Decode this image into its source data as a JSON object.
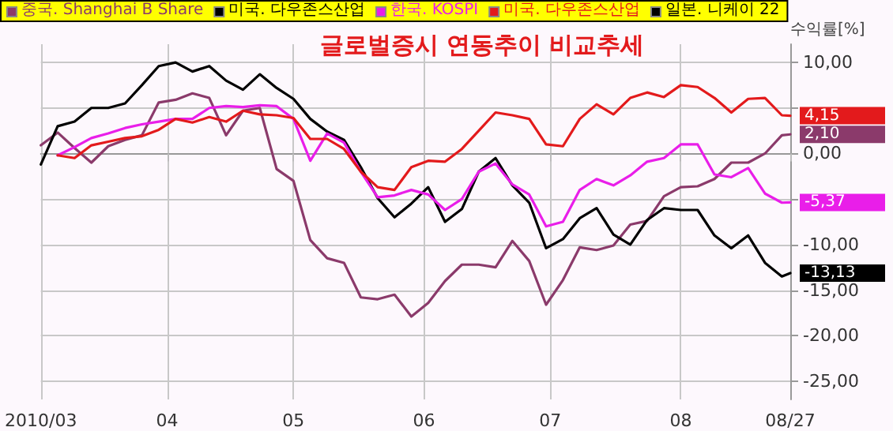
{
  "chart_data": {
    "type": "line",
    "title": "글로벌증시 연동추이 비교추세",
    "ylabel": "수익률[%]",
    "x": [
      "2010-03-02",
      "2010-03-06",
      "2010-03-10",
      "2010-03-14",
      "2010-03-18",
      "2010-03-22",
      "2010-03-26",
      "2010-03-30",
      "2010-04-03",
      "2010-04-07",
      "2010-04-11",
      "2010-04-15",
      "2010-04-19",
      "2010-04-23",
      "2010-04-27",
      "2010-05-01",
      "2010-05-05",
      "2010-05-09",
      "2010-05-13",
      "2010-05-17",
      "2010-05-21",
      "2010-05-25",
      "2010-05-29",
      "2010-06-02",
      "2010-06-06",
      "2010-06-10",
      "2010-06-14",
      "2010-06-18",
      "2010-06-22",
      "2010-06-26",
      "2010-06-30",
      "2010-07-04",
      "2010-07-08",
      "2010-07-12",
      "2010-07-16",
      "2010-07-20",
      "2010-07-24",
      "2010-07-28",
      "2010-08-01",
      "2010-08-05",
      "2010-08-09",
      "2010-08-13",
      "2010-08-17",
      "2010-08-21",
      "2010-08-25",
      "2010-08-27"
    ],
    "series": [
      {
        "name": "중국. Shanghai B Share",
        "color": "#8b3a6b",
        "values": [
          0.9,
          2.3,
          0.6,
          -1,
          0.8,
          1.5,
          2,
          5.6,
          5.9,
          6.6,
          6.1,
          2,
          4.7,
          5,
          -1.7,
          -3,
          -9.5,
          -11.5,
          -12,
          -15.8,
          -16,
          -15.5,
          -17.9,
          -16.4,
          -14,
          -12.2,
          -12.2,
          -12.5,
          -9.6,
          -11.8,
          -16.6,
          -13.9,
          -10.3,
          -10.6,
          -10.1,
          -7.8,
          -7.4,
          -4.7,
          -3.7,
          -3.6,
          -2.8,
          -1,
          -1,
          0,
          2,
          2.1
        ],
        "value_labels": [
          null,
          null,
          null,
          null,
          null,
          null,
          null,
          null,
          null,
          null,
          null,
          null,
          null,
          null,
          null,
          null,
          null,
          null,
          null,
          null,
          null,
          null,
          null,
          null,
          null,
          null,
          null,
          null,
          null,
          null,
          null,
          null,
          null,
          null,
          null,
          null,
          null,
          null,
          null,
          null,
          null,
          null,
          null,
          null,
          null,
          "2,10"
        ]
      },
      {
        "name": "미국. 다우존스산업",
        "color": "#000000",
        "values": [
          -1.2,
          3,
          3.5,
          5,
          5,
          5.5,
          7.5,
          9.6,
          10,
          9,
          9.6,
          8,
          7,
          8.7,
          7.2,
          6,
          3.8,
          2.4,
          1.5,
          -1.5,
          -4.9,
          -7,
          -5.5,
          -3.7,
          -7.5,
          -6.1,
          -2,
          -0.5,
          -3.5,
          -5.4,
          -10.4,
          -9.4,
          -7.1,
          -6,
          -8.9,
          -10,
          -7.3,
          -6,
          -6.2,
          -6.2,
          -9,
          -10.4,
          -9,
          -12,
          -13.5,
          -13.13
        ],
        "value_labels": [
          null,
          null,
          null,
          null,
          null,
          null,
          null,
          null,
          null,
          null,
          null,
          null,
          null,
          null,
          null,
          null,
          null,
          null,
          null,
          null,
          null,
          null,
          null,
          null,
          null,
          null,
          null,
          null,
          null,
          null,
          null,
          null,
          null,
          null,
          null,
          null,
          null,
          null,
          null,
          null,
          null,
          null,
          null,
          null,
          null,
          "-13,13"
        ]
      },
      {
        "name": "한국. KOSPI",
        "color": "#e91ee9",
        "values": [
          null,
          -0.2,
          0.7,
          1.7,
          2.2,
          2.8,
          3.2,
          3.5,
          3.8,
          3.8,
          5,
          5.2,
          5.1,
          5.3,
          5.2,
          3.8,
          -0.8,
          2.2,
          1.2,
          -2,
          -4.8,
          -4.6,
          -4,
          -4.5,
          -6.2,
          -5,
          -2,
          -1.1,
          -3.4,
          -4.5,
          -8,
          -7.5,
          -4,
          -2.8,
          -3.5,
          -2.4,
          -0.9,
          -0.5,
          1,
          1,
          -2.3,
          -2.6,
          -1.6,
          -4.4,
          -5.4,
          -5.37
        ],
        "value_labels": [
          null,
          null,
          null,
          null,
          null,
          null,
          null,
          null,
          null,
          null,
          null,
          null,
          null,
          null,
          null,
          null,
          null,
          null,
          null,
          null,
          null,
          null,
          null,
          null,
          null,
          null,
          null,
          null,
          null,
          null,
          null,
          null,
          null,
          null,
          null,
          null,
          null,
          null,
          null,
          null,
          null,
          null,
          null,
          null,
          null,
          "-5,37"
        ]
      },
      {
        "name": "미국. 다우존스산업",
        "color": "#e31a1c",
        "values": [
          null,
          -0.2,
          -0.5,
          0.9,
          1.3,
          1.7,
          1.9,
          2.6,
          3.8,
          3.4,
          4,
          3.5,
          4.7,
          4.3,
          4.2,
          3.9,
          1.6,
          1.6,
          0.5,
          -2,
          -3.7,
          -4,
          -1.5,
          -0.8,
          -0.9,
          0.5,
          2.5,
          4.5,
          4.2,
          3.8,
          1,
          0.8,
          3.8,
          5.4,
          4.3,
          6.1,
          6.7,
          6.2,
          7.5,
          7.3,
          6.1,
          4.5,
          6,
          6.1,
          4.2,
          4.15
        ],
        "value_labels": [
          null,
          null,
          null,
          null,
          null,
          null,
          null,
          null,
          null,
          null,
          null,
          null,
          null,
          null,
          null,
          null,
          null,
          null,
          null,
          null,
          null,
          null,
          null,
          null,
          null,
          null,
          null,
          null,
          null,
          null,
          null,
          null,
          null,
          null,
          null,
          null,
          null,
          null,
          null,
          null,
          null,
          null,
          null,
          null,
          null,
          "4,15"
        ]
      },
      {
        "name": "일본. 니케이 22",
        "color": "#000000",
        "values": [
          null,
          null,
          null,
          null,
          null,
          null,
          null,
          null,
          null,
          null,
          null,
          null,
          null,
          null,
          null,
          null,
          null,
          null,
          null,
          null,
          null,
          null,
          null,
          null,
          null,
          null,
          null,
          null,
          null,
          null,
          null,
          null,
          null,
          null,
          null,
          null,
          null,
          null,
          null,
          null,
          null,
          null,
          null,
          null,
          null,
          null
        ]
      }
    ],
    "xlim": [
      "2010-03-02",
      "2010-08-27"
    ],
    "xticks": [
      {
        "value": "2010-03-02",
        "label": "2010/03"
      },
      {
        "value": "2010-04-01",
        "label": "04"
      },
      {
        "value": "2010-05-01",
        "label": "05"
      },
      {
        "value": "2010-06-01",
        "label": "06"
      },
      {
        "value": "2010-07-01",
        "label": "07"
      },
      {
        "value": "2010-08-01",
        "label": "08"
      },
      {
        "value": "2010-08-27",
        "label": "08/27"
      }
    ],
    "ylim": [
      -27,
      12
    ],
    "yticks": [
      {
        "value": 10,
        "label": "10,00"
      },
      {
        "value": 5,
        "label": null
      },
      {
        "value": 0,
        "label": "0,00"
      },
      {
        "value": -5,
        "label": null
      },
      {
        "value": -10,
        "label": "-10,00"
      },
      {
        "value": -15,
        "label": "-15,00"
      },
      {
        "value": -20,
        "label": "-20,00"
      },
      {
        "value": -25,
        "label": "-25,00"
      }
    ],
    "grid": true,
    "legend": "top",
    "marker": "none",
    "line_style": "solid"
  }
}
